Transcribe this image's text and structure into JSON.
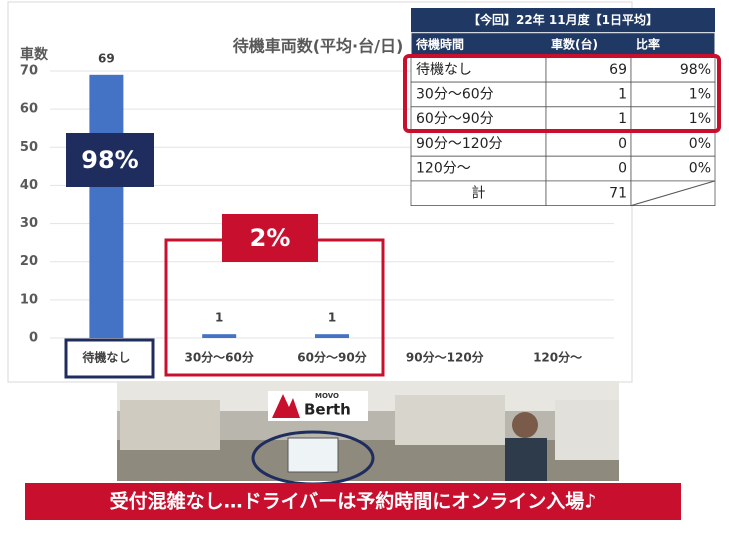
{
  "chart_data": {
    "type": "bar",
    "title": "待機車両数(平均·台/日)",
    "y_label": "車数",
    "categories": [
      "待機なし",
      "30分～60分",
      "60分～90分",
      "90分～120分",
      "120分～"
    ],
    "values": [
      69,
      1,
      1,
      0,
      0
    ],
    "value_labels": [
      "69",
      "1",
      "1",
      null,
      null
    ],
    "color": "#4472c4",
    "ylim": [
      0,
      70
    ],
    "yticks": [
      0,
      10,
      20,
      30,
      40,
      50,
      60,
      70
    ],
    "grid": true
  },
  "table": {
    "title": "【今回】22年 11月度【1日平均】",
    "header": [
      "待機時間",
      "車数(台)",
      "比率"
    ],
    "rows": [
      [
        "待機なし",
        "69",
        "98%"
      ],
      [
        "30分～60分",
        "1",
        "1%"
      ],
      [
        "60分～90分",
        "1",
        "1%"
      ],
      [
        "90分～120分",
        "0",
        "0%"
      ],
      [
        "120分～",
        "0",
        "0%"
      ],
      [
        "計",
        "71"
      ]
    ]
  },
  "annotations": {
    "main_share": "98%",
    "other_share": "2%"
  },
  "photo": {
    "brand_small": "MOVO",
    "brand": "Berth"
  },
  "caption": "受付混雑なし…ドライバーは予約時間にオンライン入場♪"
}
